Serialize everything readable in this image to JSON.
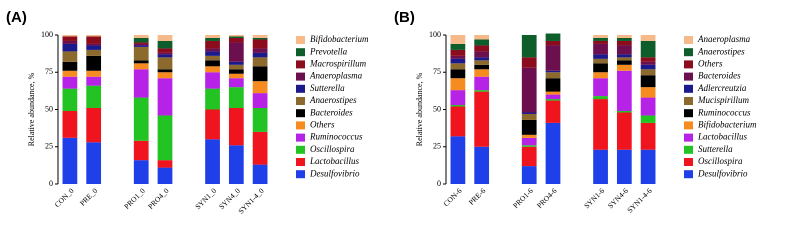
{
  "chart_data": [
    {
      "type": "bar",
      "stacked": true,
      "title": "(A)",
      "ylabel": "Relative abundance, %",
      "categories": [
        "CON_0",
        "PRE_0",
        null,
        "PRO1_0",
        "PRO4_0",
        null,
        "SYN1_0",
        "SYN4_0",
        "SYN1-4_0"
      ],
      "ylim": [
        0,
        100
      ],
      "yticks": [
        0,
        25,
        50,
        75,
        100
      ],
      "series": [
        {
          "name": "Desulfovibrio",
          "color": "#1f3fe8",
          "values": [
            31,
            28,
            null,
            16,
            11,
            null,
            30,
            26,
            13
          ]
        },
        {
          "name": "Lactobacillus",
          "color": "#f0141e",
          "values": [
            18,
            23,
            null,
            13,
            5,
            null,
            20,
            25,
            22
          ]
        },
        {
          "name": "Oscillospira",
          "color": "#22c322",
          "values": [
            15,
            15,
            null,
            29,
            30,
            null,
            14,
            14,
            16
          ]
        },
        {
          "name": "Ruminococcus",
          "color": "#b622e6",
          "values": [
            8,
            6,
            null,
            19,
            25,
            null,
            11,
            6,
            10
          ]
        },
        {
          "name": "Others",
          "color": "#f68b1f",
          "values": [
            4,
            4,
            null,
            4,
            4,
            null,
            4,
            3,
            8
          ]
        },
        {
          "name": "Bacteroides",
          "color": "#000000",
          "values": [
            6,
            10,
            null,
            2,
            2,
            null,
            4,
            3,
            10
          ]
        },
        {
          "name": "Anaerostipes",
          "color": "#8c6a2e",
          "values": [
            7,
            4,
            null,
            9,
            8,
            null,
            3,
            3,
            6
          ]
        },
        {
          "name": "Sutterella",
          "color": "#1a1a8c",
          "values": [
            5,
            3,
            null,
            1,
            2,
            null,
            3,
            2,
            3
          ]
        },
        {
          "name": "Anaeroplasma",
          "color": "#6b0f4e",
          "values": [
            2,
            1,
            null,
            1,
            1,
            null,
            2,
            13,
            3
          ]
        },
        {
          "name": "Macrospirillum",
          "color": "#8b0d1d",
          "values": [
            3,
            5,
            null,
            1,
            3,
            null,
            5,
            3,
            6
          ]
        },
        {
          "name": "Prevotella",
          "color": "#0d5e2a",
          "values": [
            0,
            0,
            null,
            3,
            5,
            null,
            2,
            1,
            1
          ]
        },
        {
          "name": "Bifidobacterium",
          "color": "#f5b98a",
          "values": [
            1,
            1,
            null,
            2,
            4,
            null,
            2,
            1,
            2
          ]
        }
      ]
    },
    {
      "type": "bar",
      "stacked": true,
      "title": "(B)",
      "ylabel": "Relative abundance, %",
      "categories": [
        "CON-6",
        "PRE-6",
        null,
        "PRO1-6",
        "PRO4-6",
        null,
        "SYN1-6",
        "SYN4-6",
        "SYN1-4-6"
      ],
      "ylim": [
        0,
        100
      ],
      "yticks": [
        0,
        25,
        50,
        75,
        100
      ],
      "series": [
        {
          "name": "Desulfovibrio",
          "color": "#1f3fe8",
          "values": [
            32,
            25,
            null,
            12,
            41,
            null,
            23,
            23,
            23
          ]
        },
        {
          "name": "Oscillospira",
          "color": "#f0141e",
          "values": [
            20,
            37,
            null,
            13,
            15,
            null,
            34,
            25,
            18
          ]
        },
        {
          "name": "Sutterella",
          "color": "#22c322",
          "values": [
            1,
            1,
            null,
            1,
            1,
            null,
            2,
            1,
            5
          ]
        },
        {
          "name": "Lactobacillus",
          "color": "#b622e6",
          "values": [
            10,
            9,
            null,
            5,
            3,
            null,
            12,
            27,
            12
          ]
        },
        {
          "name": "Bifidobacterium",
          "color": "#f68b1f",
          "values": [
            8,
            5,
            null,
            2,
            2,
            null,
            4,
            4,
            7
          ]
        },
        {
          "name": "Ruminococcus",
          "color": "#000000",
          "values": [
            6,
            3,
            null,
            10,
            9,
            null,
            6,
            3,
            8
          ]
        },
        {
          "name": "Mucispirillum",
          "color": "#8c6a2e",
          "values": [
            4,
            3,
            null,
            4,
            4,
            null,
            3,
            2,
            4
          ]
        },
        {
          "name": "Adlercreutzia",
          "color": "#1a1a8c",
          "values": [
            3,
            2,
            null,
            1,
            1,
            null,
            3,
            2,
            3
          ]
        },
        {
          "name": "Bacteroides",
          "color": "#6b0f4e",
          "values": [
            2,
            4,
            null,
            30,
            17,
            null,
            7,
            6,
            2
          ]
        },
        {
          "name": "Others",
          "color": "#8b0d1d",
          "values": [
            4,
            4,
            null,
            7,
            3,
            null,
            2,
            3,
            3
          ]
        },
        {
          "name": "Anaerostipes",
          "color": "#0d5e2a",
          "values": [
            4,
            4,
            null,
            15,
            5,
            null,
            2,
            2,
            11
          ]
        },
        {
          "name": "Anaeroplasma",
          "color": "#f5b98a",
          "values": [
            6,
            3,
            null,
            0,
            0,
            null,
            2,
            2,
            4
          ]
        }
      ]
    }
  ]
}
